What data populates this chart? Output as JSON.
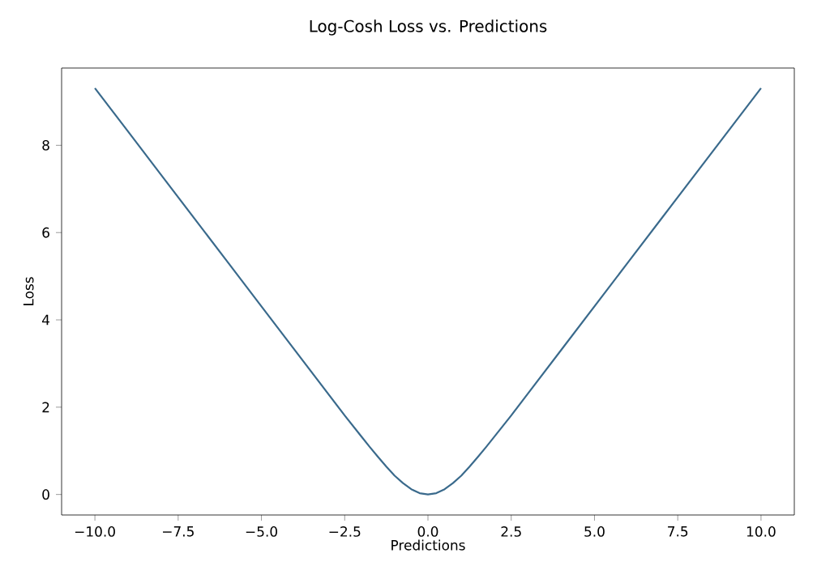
{
  "chart_data": {
    "type": "line",
    "title": "Log-Cosh Loss vs. Predictions",
    "xlabel": "Predictions",
    "ylabel": "Loss",
    "x": [
      -10,
      -9,
      -8,
      -7,
      -6,
      -5,
      -4,
      -3,
      -2.5,
      -2,
      -1.75,
      -1.5,
      -1.25,
      -1,
      -0.75,
      -0.5,
      -0.25,
      0,
      0.25,
      0.5,
      0.75,
      1,
      1.25,
      1.5,
      1.75,
      2,
      2.5,
      3,
      4,
      5,
      6,
      7,
      8,
      9,
      10
    ],
    "series": [
      {
        "color": "#3a6a8c",
        "values": [
          9.31,
          8.31,
          7.31,
          6.31,
          5.31,
          4.31,
          3.31,
          2.31,
          1.81,
          1.33,
          1.09,
          0.86,
          0.64,
          0.43,
          0.26,
          0.12,
          0.03,
          0,
          0.03,
          0.12,
          0.26,
          0.43,
          0.64,
          0.86,
          1.09,
          1.33,
          1.81,
          2.31,
          3.31,
          4.31,
          5.31,
          6.31,
          7.31,
          8.31,
          9.31
        ]
      }
    ],
    "xlim": [
      -11,
      11
    ],
    "ylim": [
      -0.47,
      9.77
    ],
    "xticks": [
      {
        "value": -10,
        "label": "−10.0"
      },
      {
        "value": -7.5,
        "label": "−7.5"
      },
      {
        "value": -5,
        "label": "−5.0"
      },
      {
        "value": -2.5,
        "label": "−2.5"
      },
      {
        "value": 0,
        "label": "0.0"
      },
      {
        "value": 2.5,
        "label": "2.5"
      },
      {
        "value": 5,
        "label": "5.0"
      },
      {
        "value": 7.5,
        "label": "7.5"
      },
      {
        "value": 10,
        "label": "10.0"
      }
    ],
    "yticks": [
      0,
      2,
      4,
      6,
      8
    ],
    "grid": false,
    "marker": "none",
    "line_style": "solid"
  }
}
